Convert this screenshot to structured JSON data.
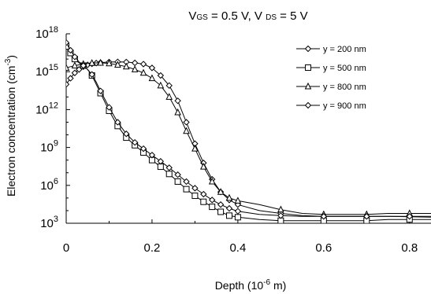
{
  "chart_data": {
    "type": "line",
    "title": {
      "v": "V",
      "gs": "GS",
      "mid": " = 0.5 V, V ",
      "ds": "DS",
      "end": " = 5 V"
    },
    "xlabel": {
      "base": "Depth (10",
      "exp": "-6",
      "end": " m)"
    },
    "ylabel": {
      "base": "Electron concentration (cm",
      "exp": "-3",
      "end": ")"
    },
    "x_ticks": [
      "0",
      "0.2",
      "0.4",
      "0.6",
      "0.8"
    ],
    "y_ticks": [
      {
        "base": "10",
        "exp": "3"
      },
      {
        "base": "10",
        "exp": "6"
      },
      {
        "base": "10",
        "exp": "9"
      },
      {
        "base": "10",
        "exp": "12"
      },
      {
        "base": "10",
        "exp": "15"
      },
      {
        "base": "10",
        "exp": "18"
      }
    ],
    "xlim": [
      0,
      0.85
    ],
    "ylim_log10": [
      3,
      18
    ],
    "y_scale": "log",
    "grid": false,
    "legend_position": "top-right",
    "series": [
      {
        "name": "y = 200 nm",
        "marker": "diamond",
        "points": [
          [
            0,
            100000000000000.0
          ],
          [
            0.01,
            300000000000000.0
          ],
          [
            0.02,
            800000000000000.0
          ],
          [
            0.03,
            1500000000000000.0
          ],
          [
            0.04,
            2500000000000000.0
          ],
          [
            0.05,
            3500000000000000.0
          ],
          [
            0.06,
            4200000000000000.0
          ],
          [
            0.07,
            4800000000000000.0
          ],
          [
            0.08,
            5200000000000000.0
          ],
          [
            0.09,
            5500000000000000.0
          ],
          [
            0.1,
            5800000000000000.0
          ],
          [
            0.12,
            6000000000000000.0
          ],
          [
            0.14,
            5800000000000000.0
          ],
          [
            0.16,
            5000000000000000.0
          ],
          [
            0.18,
            4000000000000000.0
          ],
          [
            0.2,
            2000000000000000.0
          ],
          [
            0.22,
            500000000000000.0
          ],
          [
            0.24,
            80000000000000.0
          ],
          [
            0.26,
            5000000000000.0
          ],
          [
            0.28,
            100000000000.0
          ],
          [
            0.3,
            2000000000.0
          ],
          [
            0.32,
            60000000.0
          ],
          [
            0.34,
            3000000.0
          ],
          [
            0.36,
            300000.0
          ],
          [
            0.38,
            70000.0
          ],
          [
            0.4,
            30000.0
          ],
          [
            0.45,
            10000.0
          ],
          [
            0.5,
            6000.0
          ],
          [
            0.55,
            4000.0
          ],
          [
            0.6,
            3500.0
          ],
          [
            0.65,
            3500.0
          ],
          [
            0.7,
            3500.0
          ],
          [
            0.75,
            3500.0
          ],
          [
            0.8,
            3300.0
          ],
          [
            0.85,
            3000.0
          ]
        ]
      },
      {
        "name": "y = 500 nm",
        "marker": "square",
        "points": [
          [
            0,
            1e+17
          ],
          [
            0.01,
            3e+16
          ],
          [
            0.02,
            1e+16
          ],
          [
            0.03,
            5000000000000000.0
          ],
          [
            0.04,
            3000000000000000.0
          ],
          [
            0.05,
            1500000000000000.0
          ],
          [
            0.06,
            500000000000000.0
          ],
          [
            0.07,
            100000000000000.0
          ],
          [
            0.08,
            20000000000000.0
          ],
          [
            0.1,
            800000000000.0
          ],
          [
            0.12,
            50000000000.0
          ],
          [
            0.14,
            6000000000.0
          ],
          [
            0.16,
            1500000000.0
          ],
          [
            0.18,
            400000000.0
          ],
          [
            0.2,
            100000000.0
          ],
          [
            0.22,
            30000000.0
          ],
          [
            0.24,
            8000000.0
          ],
          [
            0.26,
            2000000.0
          ],
          [
            0.28,
            500000.0
          ],
          [
            0.3,
            150000.0
          ],
          [
            0.32,
            50000.0
          ],
          [
            0.34,
            20000.0
          ],
          [
            0.36,
            8000.0
          ],
          [
            0.38,
            4000.0
          ],
          [
            0.4,
            3000.0
          ],
          [
            0.45,
            2000.0
          ],
          [
            0.5,
            1600.0
          ],
          [
            0.55,
            1600.0
          ],
          [
            0.6,
            1600.0
          ],
          [
            0.65,
            1600.0
          ],
          [
            0.7,
            1600.0
          ],
          [
            0.75,
            2000.0
          ],
          [
            0.8,
            2000.0
          ],
          [
            0.85,
            2000.0
          ]
        ]
      },
      {
        "name": "y = 800 nm",
        "marker": "triangle",
        "points": [
          [
            0,
            2000000000000000.0
          ],
          [
            0.01,
            2500000000000000.0
          ],
          [
            0.02,
            3000000000000000.0
          ],
          [
            0.03,
            3500000000000000.0
          ],
          [
            0.04,
            4000000000000000.0
          ],
          [
            0.05,
            4500000000000000.0
          ],
          [
            0.06,
            4800000000000000.0
          ],
          [
            0.07,
            5000000000000000.0
          ],
          [
            0.08,
            5000000000000000.0
          ],
          [
            0.09,
            4800000000000000.0
          ],
          [
            0.1,
            4500000000000000.0
          ],
          [
            0.12,
            3500000000000000.0
          ],
          [
            0.14,
            2500000000000000.0
          ],
          [
            0.16,
            1500000000000000.0
          ],
          [
            0.18,
            800000000000000.0
          ],
          [
            0.2,
            300000000000000.0
          ],
          [
            0.22,
            80000000000000.0
          ],
          [
            0.24,
            10000000000000.0
          ],
          [
            0.26,
            600000000000.0
          ],
          [
            0.28,
            20000000000.0
          ],
          [
            0.3,
            800000000.0
          ],
          [
            0.32,
            30000000.0
          ],
          [
            0.34,
            2000000.0
          ],
          [
            0.36,
            300000.0
          ],
          [
            0.38,
            100000.0
          ],
          [
            0.4,
            60000.0
          ],
          [
            0.45,
            30000.0
          ],
          [
            0.5,
            12000.0
          ],
          [
            0.55,
            6000.0
          ],
          [
            0.6,
            5000.0
          ],
          [
            0.65,
            5000.0
          ],
          [
            0.7,
            5000.0
          ],
          [
            0.75,
            6000.0
          ],
          [
            0.8,
            6000.0
          ],
          [
            0.85,
            6000.0
          ]
        ]
      },
      {
        "name": "y = 900 nm",
        "marker": "diamond",
        "points": [
          [
            0,
            2e+17
          ],
          [
            0.01,
            5e+16
          ],
          [
            0.02,
            1.5e+16
          ],
          [
            0.03,
            6000000000000000.0
          ],
          [
            0.04,
            3000000000000000.0
          ],
          [
            0.05,
            1500000000000000.0
          ],
          [
            0.06,
            600000000000000.0
          ],
          [
            0.07,
            150000000000000.0
          ],
          [
            0.08,
            30000000000000.0
          ],
          [
            0.1,
            1500000000000.0
          ],
          [
            0.12,
            100000000000.0
          ],
          [
            0.14,
            12000000000.0
          ],
          [
            0.16,
            2500000000.0
          ],
          [
            0.18,
            800000000.0
          ],
          [
            0.2,
            250000000.0
          ],
          [
            0.22,
            80000000.0
          ],
          [
            0.24,
            25000000.0
          ],
          [
            0.26,
            7000000.0
          ],
          [
            0.28,
            2000000.0
          ],
          [
            0.3,
            600000.0
          ],
          [
            0.32,
            200000.0
          ],
          [
            0.34,
            70000.0
          ],
          [
            0.36,
            30000.0
          ],
          [
            0.38,
            15000.0
          ],
          [
            0.4,
            9000.0
          ],
          [
            0.45,
            5000.0
          ],
          [
            0.5,
            4000.0
          ],
          [
            0.55,
            3500.0
          ],
          [
            0.6,
            3500.0
          ],
          [
            0.65,
            3500.0
          ],
          [
            0.7,
            3500.0
          ],
          [
            0.75,
            3500.0
          ],
          [
            0.8,
            3500.0
          ],
          [
            0.85,
            3500.0
          ]
        ]
      }
    ],
    "marker_x": {
      "y = 200 nm": [
        0,
        0.01,
        0.02,
        0.03,
        0.04,
        0.05,
        0.06,
        0.07,
        0.08,
        0.1,
        0.12,
        0.14,
        0.16,
        0.18,
        0.2,
        0.22,
        0.24,
        0.26,
        0.28,
        0.3,
        0.32,
        0.34,
        0.36,
        0.38,
        0.4,
        0.5,
        0.6,
        0.7,
        0.8
      ],
      "y = 500 nm": [
        0,
        0.01,
        0.02,
        0.04,
        0.06,
        0.08,
        0.1,
        0.12,
        0.14,
        0.16,
        0.18,
        0.2,
        0.22,
        0.24,
        0.26,
        0.28,
        0.3,
        0.32,
        0.34,
        0.36,
        0.38,
        0.4,
        0.5,
        0.6,
        0.7,
        0.8
      ],
      "y = 800 nm": [
        0,
        0.02,
        0.04,
        0.06,
        0.08,
        0.1,
        0.12,
        0.14,
        0.16,
        0.18,
        0.2,
        0.22,
        0.24,
        0.26,
        0.28,
        0.3,
        0.32,
        0.34,
        0.36,
        0.38,
        0.4,
        0.5,
        0.6,
        0.7,
        0.8
      ],
      "y = 900 nm": [
        0,
        0.01,
        0.02,
        0.04,
        0.06,
        0.08,
        0.1,
        0.12,
        0.14,
        0.16,
        0.18,
        0.2,
        0.22,
        0.24,
        0.26,
        0.28,
        0.3,
        0.32,
        0.34,
        0.36,
        0.38,
        0.4,
        0.5,
        0.6,
        0.7,
        0.8
      ]
    }
  }
}
